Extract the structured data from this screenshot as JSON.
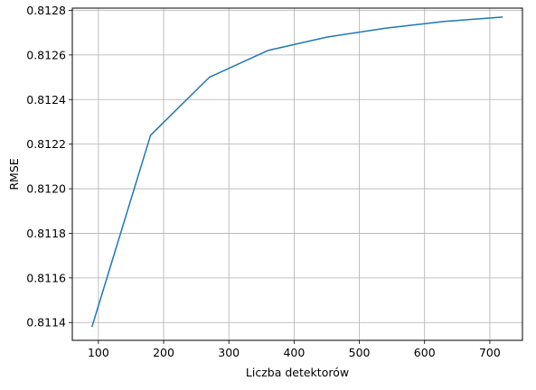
{
  "chart_data": {
    "type": "line",
    "title": "",
    "xlabel": "Liczba detektorów",
    "ylabel": "RMSE",
    "grid": true,
    "xlim": [
      60,
      750
    ],
    "ylim": [
      0.81132,
      0.81281
    ],
    "xticks": [
      100,
      200,
      300,
      400,
      500,
      600,
      700
    ],
    "yticks": [
      0.8114,
      0.8116,
      0.8118,
      0.812,
      0.8122,
      0.8124,
      0.8126,
      0.8128
    ],
    "xtick_labels": [
      "100",
      "200",
      "300",
      "400",
      "500",
      "600",
      "700"
    ],
    "ytick_labels": [
      "0.8114",
      "0.8116",
      "0.8118",
      "0.8120",
      "0.8122",
      "0.8124",
      "0.8126",
      "0.8128"
    ],
    "series": [
      {
        "color": "#1f77b4",
        "x": [
          90,
          180,
          270,
          360,
          450,
          540,
          630,
          720
        ],
        "y": [
          0.81138,
          0.81224,
          0.8125,
          0.81262,
          0.81268,
          0.81272,
          0.81275,
          0.81277
        ]
      }
    ]
  }
}
